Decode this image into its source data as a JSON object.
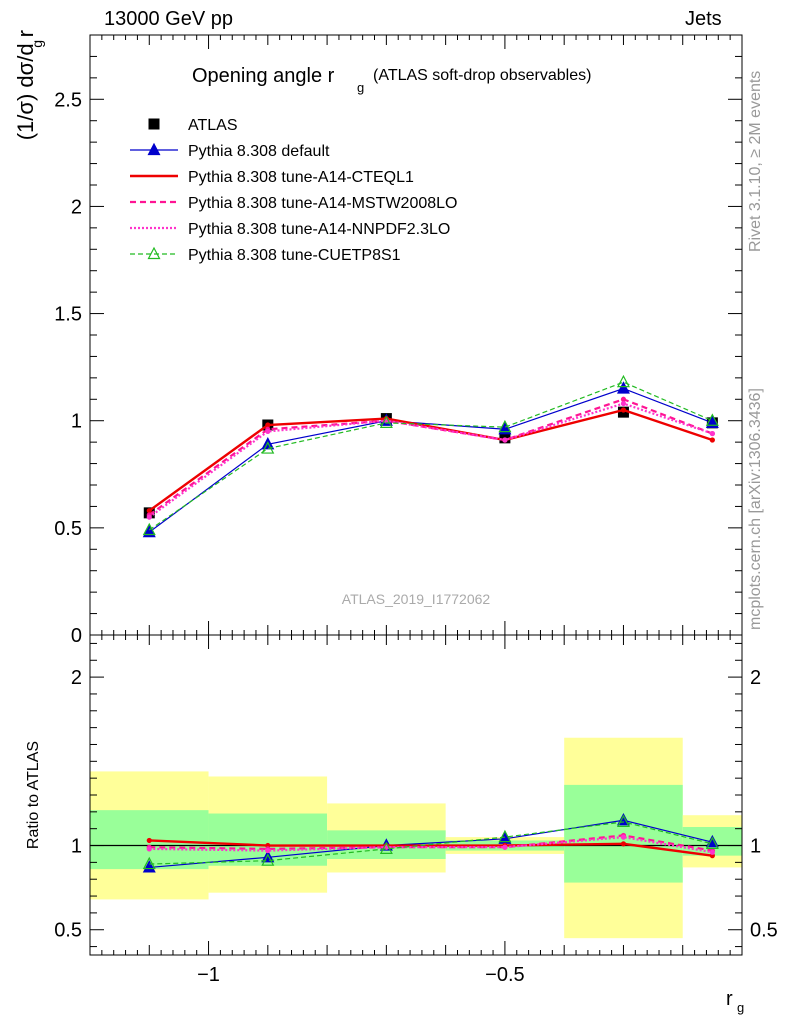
{
  "header": {
    "left": "13000 GeV pp",
    "right": "Jets"
  },
  "side_labels": {
    "rivet": "Rivet 3.1.10, ≥ 2M events",
    "mcplots": "mcplots.cern.ch [arXiv:1306.3436]"
  },
  "chart_data": [
    {
      "type": "line",
      "title": "Opening angle r",
      "title_sub": "g",
      "title_suffix": "(ATLAS soft-drop observables)",
      "ylabel": "(1/σ) dσ/d r",
      "ylabel_sub": "g",
      "watermark": "ATLAS_2019_I1772062",
      "xlim": [
        -1.2,
        -0.1
      ],
      "ylim": [
        0,
        2.8
      ],
      "yticks": [
        0,
        0.5,
        1,
        1.5,
        2,
        2.5
      ],
      "ytick_labels": [
        "0",
        "0.5",
        "1",
        "1.5",
        "2",
        "2.5"
      ],
      "x": [
        -1.1,
        -0.9,
        -0.7,
        -0.5,
        -0.3,
        -0.15
      ],
      "series": [
        {
          "name": "ATLAS",
          "color": "#000000",
          "values": [
            0.57,
            0.98,
            1.01,
            0.92,
            1.04,
            0.99
          ]
        },
        {
          "name": "Pythia 8.308 default",
          "color": "#0000cc",
          "values": [
            0.48,
            0.89,
            1.0,
            0.96,
            1.15,
            0.99
          ]
        },
        {
          "name": "Pythia 8.308 tune-A14-CTEQL1",
          "color": "#ee0000",
          "values": [
            0.58,
            0.98,
            1.01,
            0.91,
            1.05,
            0.91
          ]
        },
        {
          "name": "Pythia 8.308 tune-A14-MSTW2008LO",
          "color": "#ff1493",
          "values": [
            0.56,
            0.96,
            1.0,
            0.91,
            1.1,
            0.94
          ]
        },
        {
          "name": "Pythia 8.308 tune-A14-NNPDF2.3LO",
          "color": "#ff33cc",
          "values": [
            0.55,
            0.95,
            1.0,
            0.91,
            1.08,
            0.94
          ]
        },
        {
          "name": "Pythia 8.308 tune-CUETP8S1",
          "color": "#22bb22",
          "values": [
            0.49,
            0.87,
            0.99,
            0.97,
            1.18,
            1.0
          ]
        }
      ]
    },
    {
      "type": "line",
      "ylabel": "Ratio to ATLAS",
      "xlabel": "r",
      "xlabel_sub": "g",
      "xlim": [
        -1.2,
        -0.1
      ],
      "ylim": [
        0.35,
        2.25
      ],
      "yticks": [
        0.5,
        1,
        2
      ],
      "ytick_labels": [
        "0.5",
        "1",
        "2"
      ],
      "xticks": [
        -1,
        -0.5
      ],
      "xtick_labels": [
        "−1",
        "−0.5"
      ],
      "bins": [
        -1.2,
        -1.0,
        -0.8,
        -0.6,
        -0.4,
        -0.2,
        -0.1
      ],
      "band_green": [
        [
          0.86,
          1.21
        ],
        [
          0.88,
          1.19
        ],
        [
          0.92,
          1.09
        ],
        [
          0.97,
          1.03
        ],
        [
          0.78,
          1.36
        ],
        [
          0.94,
          1.11
        ]
      ],
      "band_yellow": [
        [
          0.68,
          1.44
        ],
        [
          0.72,
          1.41
        ],
        [
          0.84,
          1.25
        ],
        [
          0.95,
          1.05
        ],
        [
          0.45,
          1.64
        ],
        [
          0.87,
          1.18
        ]
      ],
      "x": [
        -1.1,
        -0.9,
        -0.7,
        -0.5,
        -0.3,
        -0.15
      ],
      "series": [
        {
          "name": "Pythia 8.308 default",
          "values": [
            0.87,
            0.93,
            1.0,
            1.04,
            1.15,
            1.02
          ]
        },
        {
          "name": "Pythia 8.308 tune-A14-CTEQL1",
          "values": [
            1.03,
            1.0,
            1.0,
            1.0,
            1.01,
            0.94
          ]
        },
        {
          "name": "Pythia 8.308 tune-A14-MSTW2008LO",
          "values": [
            0.99,
            0.98,
            0.99,
            0.99,
            1.06,
            0.97
          ]
        },
        {
          "name": "Pythia 8.308 tune-A14-NNPDF2.3LO",
          "values": [
            0.98,
            0.97,
            0.99,
            0.99,
            1.05,
            0.96
          ]
        },
        {
          "name": "Pythia 8.308 tune-CUETP8S1",
          "values": [
            0.89,
            0.91,
            0.98,
            1.05,
            1.14,
            1.01
          ]
        }
      ]
    }
  ]
}
